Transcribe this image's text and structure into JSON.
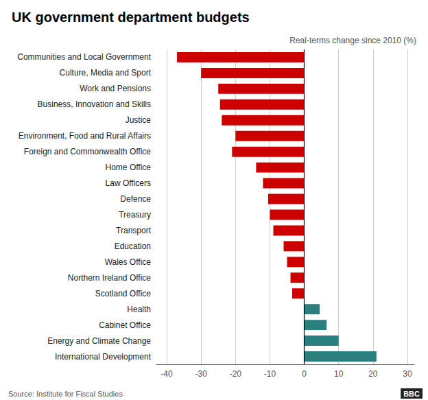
{
  "chart_data": {
    "type": "bar",
    "orientation": "horizontal",
    "title": "UK government department budgets",
    "subtitle": "Real-terms change since 2010 (%)",
    "annotations": [
      "Source: Institute for Fiscal Studies",
      "BBC"
    ],
    "categories": [
      "International Development",
      "Energy and Climate Change",
      "Cabinet Office",
      "Health",
      "Scotland Office",
      "Northern Ireland Office",
      "Wales Office",
      "Education",
      "Transport",
      "Treasury",
      "Defence",
      "Law Officers",
      "Home Office",
      "Foreign and Commonwealth Office",
      "Environment, Food and Rural Affairs",
      "Justice",
      "Business, Innovation and Skills",
      "Work and Pensions",
      "Culture, Media and Sport",
      "Communities and Local Government"
    ],
    "values": [
      21.0,
      10.0,
      6.5,
      4.5,
      -3.5,
      -4.0,
      -5.0,
      -6.0,
      -9.0,
      -10.0,
      -10.5,
      -12.0,
      -14.0,
      -21.0,
      -20.0,
      -24.0,
      -24.5,
      -25.0,
      -30.0,
      -37.0
    ],
    "colors": [
      "#2a7f7f",
      "#2a7f7f",
      "#2a7f7f",
      "#2a7f7f",
      "#cc0000",
      "#cc0000",
      "#cc0000",
      "#cc0000",
      "#cc0000",
      "#cc0000",
      "#cc0000",
      "#cc0000",
      "#cc0000",
      "#cc0000",
      "#cc0000",
      "#cc0000",
      "#cc0000",
      "#cc0000",
      "#cc0000",
      "#cc0000"
    ],
    "xlim": [
      -43,
      32
    ],
    "xticks": [
      -40,
      -30,
      -20,
      -10,
      0,
      10,
      20,
      30
    ],
    "grid": true
  }
}
